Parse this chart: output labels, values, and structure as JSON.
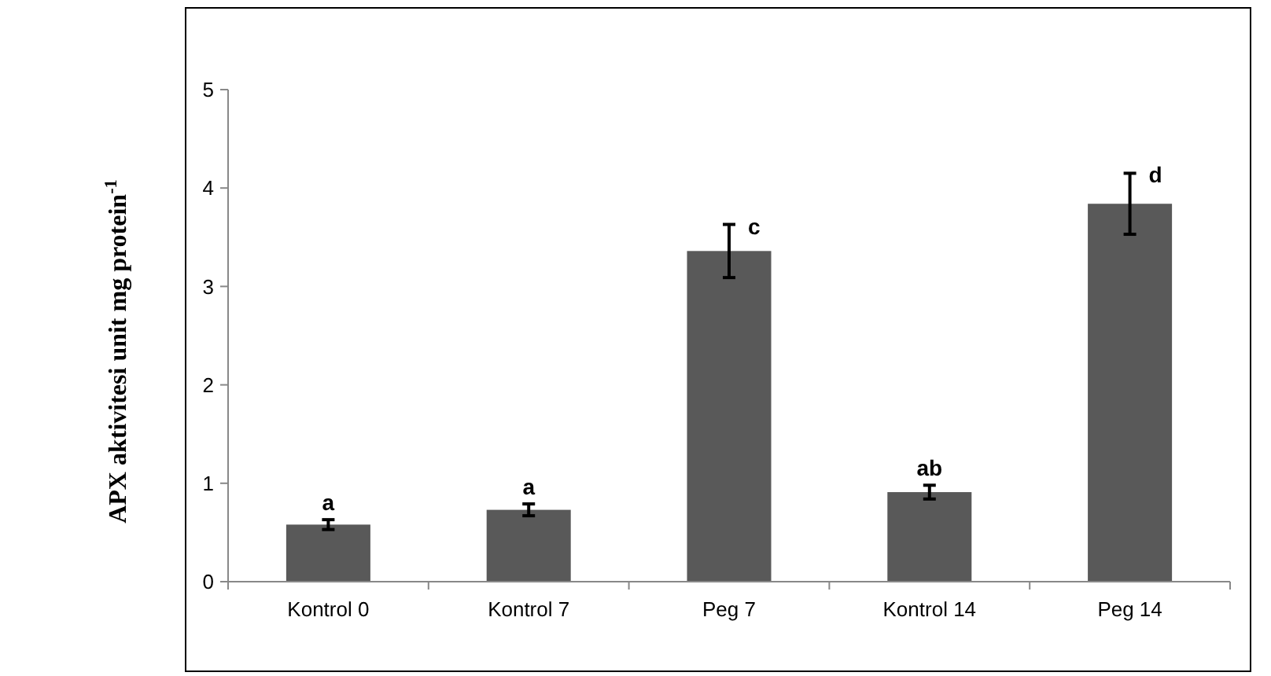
{
  "chart_data": {
    "type": "bar",
    "ylabel": "APX aktivitesi unit mg protein$^{-1}$",
    "categories": [
      "Kontrol 0",
      "Kontrol 7",
      "Peg 7",
      "Kontrol 14",
      "Peg 14"
    ],
    "values": [
      0.58,
      0.73,
      3.36,
      0.91,
      3.84
    ],
    "errors": [
      0.05,
      0.06,
      0.27,
      0.07,
      0.31
    ],
    "color": "#595959",
    "ylim": [
      0,
      5
    ],
    "yticks": [
      0,
      1,
      2,
      3,
      4,
      5
    ],
    "grid": false,
    "annotations": [
      {
        "text": "a",
        "x": "Kontrol 0",
        "y": 0.63
      },
      {
        "text": "a",
        "x": "Kontrol 7",
        "y": 0.79
      },
      {
        "text": "c",
        "x": "Peg 7",
        "y": 3.63
      },
      {
        "text": "ab",
        "x": "Kontrol 14",
        "y": 0.98
      },
      {
        "text": "d",
        "x": "Peg 14",
        "y": 4.15
      }
    ]
  }
}
